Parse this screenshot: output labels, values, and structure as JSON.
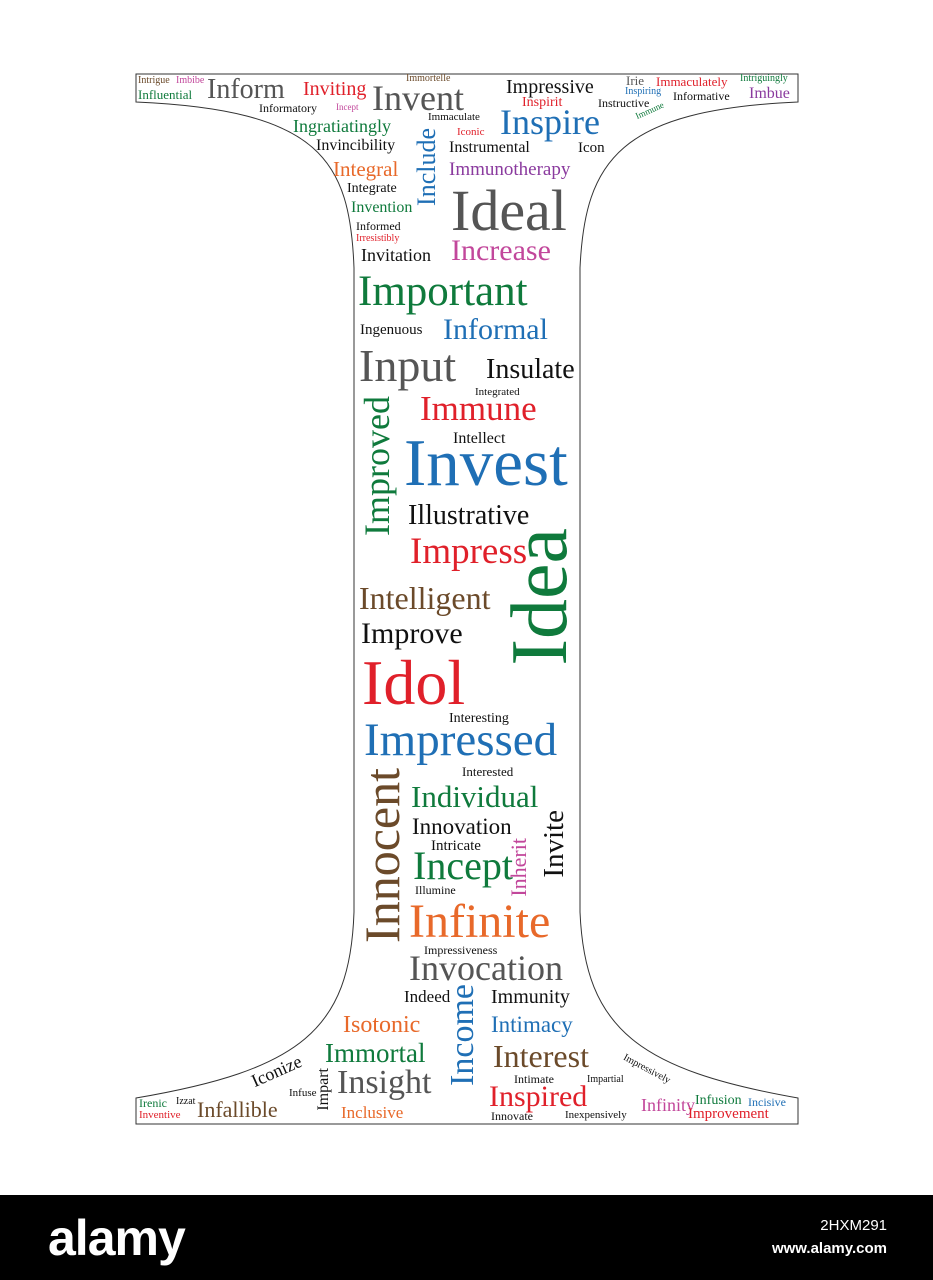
{
  "colors": {
    "green": "#0f7a3c",
    "blue": "#1f6fb5",
    "red": "#e0202a",
    "orange": "#e8692a",
    "purple": "#8a3a9e",
    "pink": "#c2479b",
    "brown": "#6b4a2a",
    "gray": "#555555",
    "black": "#111111",
    "footer": "#000000"
  },
  "words": [
    {
      "t": "Intrigue",
      "c": "brown"
    },
    {
      "t": "Imbibe",
      "c": "pink"
    },
    {
      "t": "Influential",
      "c": "green"
    },
    {
      "t": "Inform",
      "c": "gray"
    },
    {
      "t": "Inviting",
      "c": "red"
    },
    {
      "t": "Informatory",
      "c": "black"
    },
    {
      "t": "Incept",
      "c": "pink"
    },
    {
      "t": "Immortelle",
      "c": "brown"
    },
    {
      "t": "Invent",
      "c": "gray"
    },
    {
      "t": "Impressive",
      "c": "black"
    },
    {
      "t": "Irie",
      "c": "gray"
    },
    {
      "t": "Immaculately",
      "c": "red"
    },
    {
      "t": "Intriguingly",
      "c": "green"
    },
    {
      "t": "Inspirit",
      "c": "red"
    },
    {
      "t": "Inspiring",
      "c": "blue"
    },
    {
      "t": "Informative",
      "c": "black"
    },
    {
      "t": "Imbue",
      "c": "purple"
    },
    {
      "t": "Instructive",
      "c": "black"
    },
    {
      "t": "Immaculate",
      "c": "black"
    },
    {
      "t": "Ingratiatingly",
      "c": "green"
    },
    {
      "t": "Iconic",
      "c": "red"
    },
    {
      "t": "Inspire",
      "c": "blue"
    },
    {
      "t": "Immune",
      "c": "green"
    },
    {
      "t": "Invincibility",
      "c": "black"
    },
    {
      "t": "Include",
      "c": "blue"
    },
    {
      "t": "Instrumental",
      "c": "black"
    },
    {
      "t": "Icon",
      "c": "black"
    },
    {
      "t": "Integral",
      "c": "orange"
    },
    {
      "t": "Immunotherapy",
      "c": "purple"
    },
    {
      "t": "Integrate",
      "c": "black"
    },
    {
      "t": "Invention",
      "c": "green"
    },
    {
      "t": "Ideal",
      "c": "gray"
    },
    {
      "t": "Informed",
      "c": "black"
    },
    {
      "t": "Irresistibly",
      "c": "red"
    },
    {
      "t": "Invitation",
      "c": "black"
    },
    {
      "t": "Increase",
      "c": "pink"
    },
    {
      "t": "Important",
      "c": "green"
    },
    {
      "t": "Ingenuous",
      "c": "black"
    },
    {
      "t": "Informal",
      "c": "blue"
    },
    {
      "t": "Input",
      "c": "gray"
    },
    {
      "t": "Insulate",
      "c": "black"
    },
    {
      "t": "Integrated",
      "c": "black"
    },
    {
      "t": "Immune",
      "c": "red"
    },
    {
      "t": "Improved",
      "c": "green"
    },
    {
      "t": "Intellect",
      "c": "black"
    },
    {
      "t": "Invest",
      "c": "blue"
    },
    {
      "t": "Illustrative",
      "c": "black"
    },
    {
      "t": "Impress",
      "c": "red"
    },
    {
      "t": "Idea",
      "c": "green"
    },
    {
      "t": "Intelligent",
      "c": "brown"
    },
    {
      "t": "Improve",
      "c": "black"
    },
    {
      "t": "Idol",
      "c": "red"
    },
    {
      "t": "Interesting",
      "c": "black"
    },
    {
      "t": "Impressed",
      "c": "blue"
    },
    {
      "t": "Interested",
      "c": "black"
    },
    {
      "t": "Innocent",
      "c": "brown"
    },
    {
      "t": "Individual",
      "c": "green"
    },
    {
      "t": "Innovation",
      "c": "black"
    },
    {
      "t": "Invite",
      "c": "black"
    },
    {
      "t": "Intricate",
      "c": "black"
    },
    {
      "t": "Incept",
      "c": "green"
    },
    {
      "t": "Inherit",
      "c": "pink"
    },
    {
      "t": "Illumine",
      "c": "black"
    },
    {
      "t": "Infinite",
      "c": "orange"
    },
    {
      "t": "Impressiveness",
      "c": "black"
    },
    {
      "t": "Invocation",
      "c": "gray"
    },
    {
      "t": "Indeed",
      "c": "black"
    },
    {
      "t": "Income",
      "c": "blue"
    },
    {
      "t": "Immunity",
      "c": "black"
    },
    {
      "t": "Isotonic",
      "c": "orange"
    },
    {
      "t": "Intimacy",
      "c": "blue"
    },
    {
      "t": "Immortal",
      "c": "green"
    },
    {
      "t": "Interest",
      "c": "brown"
    },
    {
      "t": "Iconize",
      "c": "black"
    },
    {
      "t": "Infuse",
      "c": "black"
    },
    {
      "t": "Impart",
      "c": "black"
    },
    {
      "t": "Insight",
      "c": "gray"
    },
    {
      "t": "Intimate",
      "c": "black"
    },
    {
      "t": "Impartial",
      "c": "black"
    },
    {
      "t": "Impressively",
      "c": "black"
    },
    {
      "t": "Inclusive",
      "c": "orange"
    },
    {
      "t": "Inspired",
      "c": "red"
    },
    {
      "t": "Irenic",
      "c": "green"
    },
    {
      "t": "Izzat",
      "c": "black"
    },
    {
      "t": "Inventive",
      "c": "red"
    },
    {
      "t": "Infallible",
      "c": "brown"
    },
    {
      "t": "Innovate",
      "c": "black"
    },
    {
      "t": "Inexpensively",
      "c": "black"
    },
    {
      "t": "Infinity",
      "c": "pink"
    },
    {
      "t": "Infusion",
      "c": "green"
    },
    {
      "t": "Incisive",
      "c": "blue"
    },
    {
      "t": "Improvement",
      "c": "red"
    }
  ],
  "footer": {
    "logo": "alamy",
    "image_code": "2HXM291",
    "url": "www.alamy.com"
  }
}
